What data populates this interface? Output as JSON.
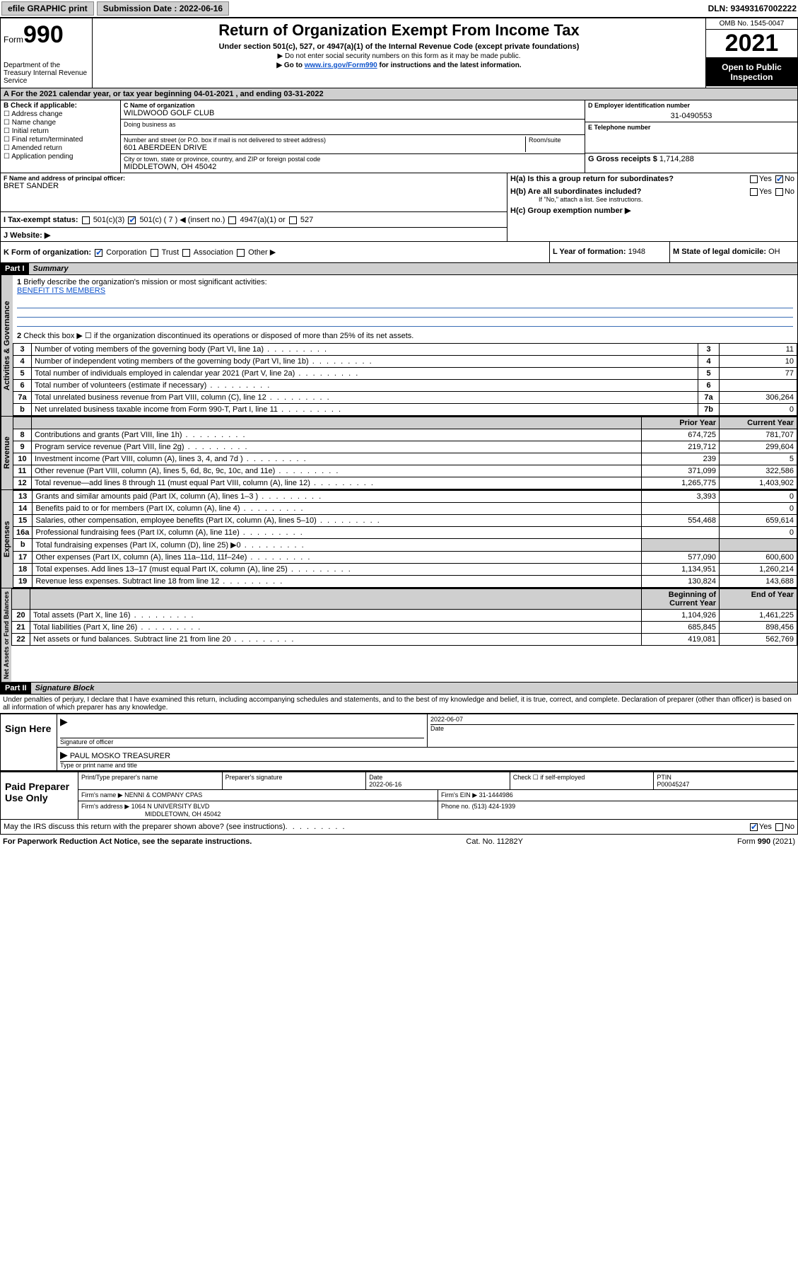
{
  "topbar": {
    "efile": "efile GRAPHIC print",
    "submission_label": "Submission Date : 2022-06-16",
    "dln": "DLN: 93493167002222"
  },
  "header": {
    "form_word": "Form",
    "form_num": "990",
    "dept": "Department of the Treasury Internal Revenue Service",
    "title": "Return of Organization Exempt From Income Tax",
    "subtitle": "Under section 501(c), 527, or 4947(a)(1) of the Internal Revenue Code (except private foundations)",
    "note1": "▶ Do not enter social security numbers on this form as it may be made public.",
    "note2_pre": "▶ Go to ",
    "note2_link": "www.irs.gov/Form990",
    "note2_post": " for instructions and the latest information.",
    "omb": "OMB No. 1545-0047",
    "year": "2021",
    "inspect": "Open to Public Inspection"
  },
  "line_a": "A For the 2021 calendar year, or tax year beginning 04-01-2021   , and ending 03-31-2022",
  "section_b": {
    "title": "B Check if applicable:",
    "items": [
      "Address change",
      "Name change",
      "Initial return",
      "Final return/terminated",
      "Amended return",
      "Application pending"
    ]
  },
  "section_c": {
    "name_label": "C Name of organization",
    "name": "WILDWOOD GOLF CLUB",
    "dba_label": "Doing business as",
    "dba": "",
    "addr_label": "Number and street (or P.O. box if mail is not delivered to street address)",
    "room_label": "Room/suite",
    "addr": "601 ABERDEEN DRIVE",
    "city_label": "City or town, state or province, country, and ZIP or foreign postal code",
    "city": "MIDDLETOWN, OH  45042"
  },
  "section_d": {
    "label": "D Employer identification number",
    "value": "31-0490553"
  },
  "section_e": {
    "label": "E Telephone number",
    "value": ""
  },
  "section_g": {
    "label": "G Gross receipts $",
    "value": "1,714,288"
  },
  "section_f": {
    "label": "F Name and address of principal officer:",
    "value": "BRET SANDER"
  },
  "section_h": {
    "ha": "H(a)  Is this a group return for subordinates?",
    "hb": "H(b)  Are all subordinates included?",
    "hb_note": "If \"No,\" attach a list. See instructions.",
    "hc": "H(c)  Group exemption number ▶"
  },
  "line_i": {
    "label": "I   Tax-exempt status:",
    "opts": [
      "501(c)(3)",
      "501(c) ( 7 ) ◀ (insert no.)",
      "4947(a)(1) or",
      "527"
    ],
    "checked_index": 1
  },
  "line_j": {
    "label": "J   Website: ▶",
    "value": ""
  },
  "line_k": {
    "label": "K Form of organization:",
    "opts": [
      "Corporation",
      "Trust",
      "Association",
      "Other ▶"
    ],
    "checked_index": 0
  },
  "line_l": {
    "label": "L Year of formation:",
    "value": "1948"
  },
  "line_m": {
    "label": "M State of legal domicile:",
    "value": "OH"
  },
  "parts": {
    "p1": {
      "hdr": "Part I",
      "title": "Summary"
    },
    "p2": {
      "hdr": "Part II",
      "title": "Signature Block"
    }
  },
  "vtabs": {
    "act": "Activities & Governance",
    "rev": "Revenue",
    "exp": "Expenses",
    "net": "Net Assets or Fund Balances"
  },
  "summary": {
    "l1": "Briefly describe the organization's mission or most significant activities:",
    "mission": "BENEFIT ITS MEMBERS",
    "l2": "Check this box ▶ ☐  if the organization discontinued its operations or disposed of more than 25% of its net assets.",
    "rows_gov": [
      {
        "n": "3",
        "t": "Number of voting members of the governing body (Part VI, line 1a)",
        "box": "3",
        "v": "11"
      },
      {
        "n": "4",
        "t": "Number of independent voting members of the governing body (Part VI, line 1b)",
        "box": "4",
        "v": "10"
      },
      {
        "n": "5",
        "t": "Total number of individuals employed in calendar year 2021 (Part V, line 2a)",
        "box": "5",
        "v": "77"
      },
      {
        "n": "6",
        "t": "Total number of volunteers (estimate if necessary)",
        "box": "6",
        "v": ""
      },
      {
        "n": "7a",
        "t": "Total unrelated business revenue from Part VIII, column (C), line 12",
        "box": "7a",
        "v": "306,264"
      },
      {
        "n": "b",
        "t": "Net unrelated business taxable income from Form 990-T, Part I, line 11",
        "box": "7b",
        "v": "0"
      }
    ],
    "year_hdr_prior": "Prior Year",
    "year_hdr_curr": "Current Year",
    "rows_rev": [
      {
        "n": "8",
        "t": "Contributions and grants (Part VIII, line 1h)",
        "p": "674,725",
        "c": "781,707"
      },
      {
        "n": "9",
        "t": "Program service revenue (Part VIII, line 2g)",
        "p": "219,712",
        "c": "299,604"
      },
      {
        "n": "10",
        "t": "Investment income (Part VIII, column (A), lines 3, 4, and 7d )",
        "p": "239",
        "c": "5"
      },
      {
        "n": "11",
        "t": "Other revenue (Part VIII, column (A), lines 5, 6d, 8c, 9c, 10c, and 11e)",
        "p": "371,099",
        "c": "322,586"
      },
      {
        "n": "12",
        "t": "Total revenue—add lines 8 through 11 (must equal Part VIII, column (A), line 12)",
        "p": "1,265,775",
        "c": "1,403,902"
      }
    ],
    "rows_exp": [
      {
        "n": "13",
        "t": "Grants and similar amounts paid (Part IX, column (A), lines 1–3 )",
        "p": "3,393",
        "c": "0"
      },
      {
        "n": "14",
        "t": "Benefits paid to or for members (Part IX, column (A), line 4)",
        "p": "",
        "c": "0"
      },
      {
        "n": "15",
        "t": "Salaries, other compensation, employee benefits (Part IX, column (A), lines 5–10)",
        "p": "554,468",
        "c": "659,614"
      },
      {
        "n": "16a",
        "t": "Professional fundraising fees (Part IX, column (A), line 11e)",
        "p": "",
        "c": "0"
      },
      {
        "n": "b",
        "t": "Total fundraising expenses (Part IX, column (D), line 25) ▶0",
        "p": "__shade__",
        "c": "__shade__"
      },
      {
        "n": "17",
        "t": "Other expenses (Part IX, column (A), lines 11a–11d, 11f–24e)",
        "p": "577,090",
        "c": "600,600"
      },
      {
        "n": "18",
        "t": "Total expenses. Add lines 13–17 (must equal Part IX, column (A), line 25)",
        "p": "1,134,951",
        "c": "1,260,214"
      },
      {
        "n": "19",
        "t": "Revenue less expenses. Subtract line 18 from line 12",
        "p": "130,824",
        "c": "143,688"
      }
    ],
    "bal_hdr_beg": "Beginning of Current Year",
    "bal_hdr_end": "End of Year",
    "rows_net": [
      {
        "n": "20",
        "t": "Total assets (Part X, line 16)",
        "p": "1,104,926",
        "c": "1,461,225"
      },
      {
        "n": "21",
        "t": "Total liabilities (Part X, line 26)",
        "p": "685,845",
        "c": "898,456"
      },
      {
        "n": "22",
        "t": "Net assets or fund balances. Subtract line 21 from line 20",
        "p": "419,081",
        "c": "562,769"
      }
    ]
  },
  "sig": {
    "penalty": "Under penalties of perjury, I declare that I have examined this return, including accompanying schedules and statements, and to the best of my knowledge and belief, it is true, correct, and complete. Declaration of preparer (other than officer) is based on all information of which preparer has any knowledge.",
    "sign_here": "Sign Here",
    "sig_officer": "Signature of officer",
    "date_label": "Date",
    "sig_date": "2022-06-07",
    "officer_name": "PAUL MOSKO  TREASURER",
    "type_name": "Type or print name and title",
    "paid": "Paid Preparer Use Only",
    "prep_name_label": "Print/Type preparer's name",
    "prep_sig_label": "Preparer's signature",
    "prep_date_label": "Date",
    "prep_date": "2022-06-16",
    "self_emp": "Check ☐ if self-employed",
    "ptin_label": "PTIN",
    "ptin": "P00045247",
    "firm_name_label": "Firm's name    ▶",
    "firm_name": "NENNI & COMPANY CPAS",
    "firm_ein_label": "Firm's EIN ▶",
    "firm_ein": "31-1444986",
    "firm_addr_label": "Firm's address ▶",
    "firm_addr1": "1064 N UNIVERSITY BLVD",
    "firm_addr2": "MIDDLETOWN, OH  45042",
    "phone_label": "Phone no.",
    "phone": "(513) 424-1939",
    "discuss": "May the IRS discuss this return with the preparer shown above? (see instructions)"
  },
  "footer": {
    "left": "For Paperwork Reduction Act Notice, see the separate instructions.",
    "mid": "Cat. No. 11282Y",
    "right": "Form 990 (2021)"
  },
  "colors": {
    "link": "#1155cc",
    "shade": "#cfcfcf"
  }
}
